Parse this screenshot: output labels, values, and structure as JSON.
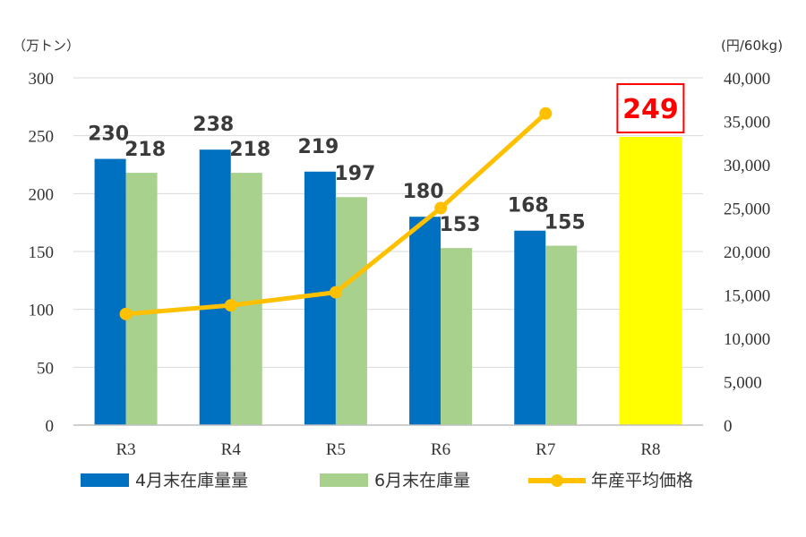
{
  "chart_data": {
    "type": "bar",
    "categories": [
      "R3",
      "R4",
      "R5",
      "R6",
      "R7",
      "R8"
    ],
    "left_axis": {
      "unit": "（万トン）",
      "ylim": [
        0,
        300
      ],
      "ticks": [
        "0",
        "50",
        "100",
        "150",
        "200",
        "250",
        "300"
      ]
    },
    "right_axis": {
      "unit": "(円/60kg)",
      "ylim": [
        0,
        40000
      ],
      "ticks": [
        "0",
        "5,000",
        "10,000",
        "15,000",
        "20,000",
        "25,000",
        "30,000",
        "35,000",
        "40,000"
      ]
    },
    "series": [
      {
        "name": "4月末在庫量量",
        "type": "bar",
        "axis": "left",
        "color": "#0070C0",
        "values": [
          230,
          238,
          219,
          180,
          168,
          null
        ],
        "labels": [
          "230",
          "238",
          "219",
          "180",
          "168",
          ""
        ]
      },
      {
        "name": "6月末在庫量",
        "type": "bar",
        "axis": "left",
        "color": "#A9D18E",
        "values": [
          218,
          218,
          197,
          153,
          155,
          null
        ],
        "labels": [
          "218",
          "218",
          "197",
          "153",
          "155",
          ""
        ]
      },
      {
        "name": "年産平均価格",
        "type": "line",
        "axis": "right",
        "color": "#FFC000",
        "values": [
          12800,
          13800,
          15300,
          25000,
          35900,
          null
        ]
      }
    ],
    "highlight": {
      "category": "R8",
      "value": 249,
      "label": "249",
      "bar_color": "#FFFF00",
      "label_color": "#FF0000",
      "box_color": "#FF0000"
    },
    "grid": true,
    "legend_position": "bottom"
  }
}
